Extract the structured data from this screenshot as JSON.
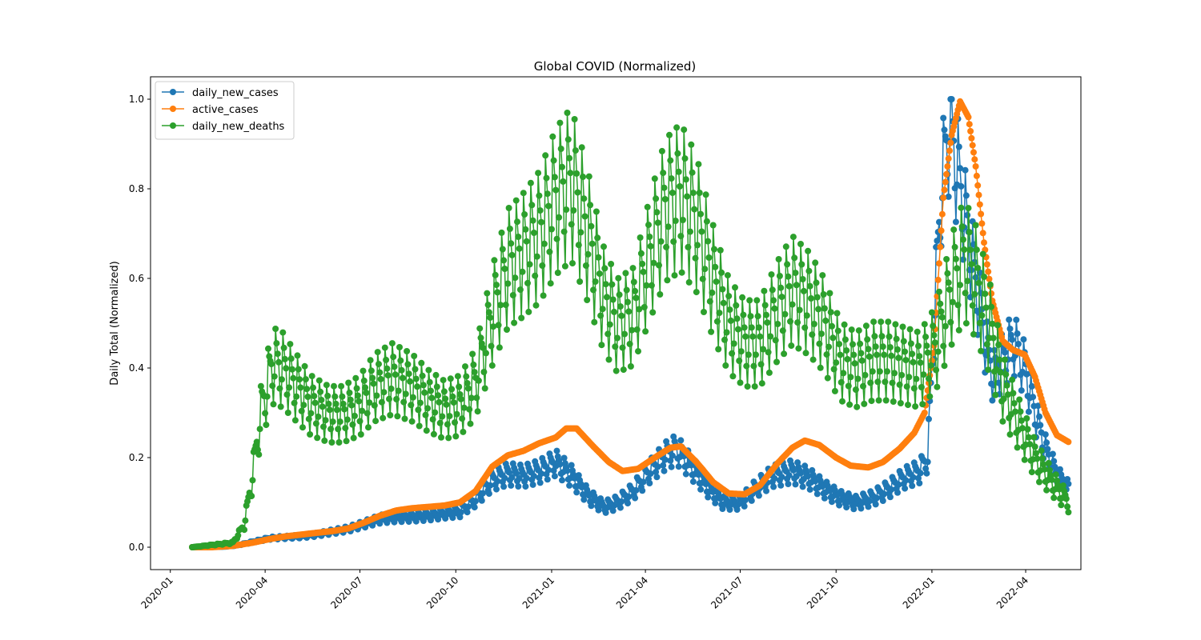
{
  "chart_data": {
    "type": "line",
    "title": "Global COVID (Normalized)",
    "xlabel": "",
    "ylabel": "Daily Total (Normalized)",
    "x_range": [
      "2019-12-13",
      "2022-05-24"
    ],
    "ylim": [
      -0.05,
      1.05
    ],
    "x_ticks": [
      "2020-01",
      "2020-04",
      "2020-07",
      "2020-10",
      "2021-01",
      "2021-04",
      "2021-07",
      "2021-10",
      "2022-01",
      "2022-04"
    ],
    "y_ticks": [
      "0.0",
      "0.2",
      "0.4",
      "0.6",
      "0.8",
      "1.0"
    ],
    "grid": false,
    "legend_position": "top-left",
    "series": [
      {
        "name": "daily_new_cases",
        "color": "#1f77b4",
        "points": [
          [
            "2020-01-22",
            0.0
          ],
          [
            "2020-02-05",
            0.002
          ],
          [
            "2020-02-20",
            0.001
          ],
          [
            "2020-03-05",
            0.004
          ],
          [
            "2020-03-20",
            0.012
          ],
          [
            "2020-04-05",
            0.02
          ],
          [
            "2020-04-20",
            0.022
          ],
          [
            "2020-05-05",
            0.024
          ],
          [
            "2020-05-20",
            0.028
          ],
          [
            "2020-06-05",
            0.035
          ],
          [
            "2020-06-20",
            0.041
          ],
          [
            "2020-07-05",
            0.052
          ],
          [
            "2020-07-20",
            0.063
          ],
          [
            "2020-08-05",
            0.067
          ],
          [
            "2020-08-20",
            0.068
          ],
          [
            "2020-09-05",
            0.071
          ],
          [
            "2020-09-20",
            0.076
          ],
          [
            "2020-10-05",
            0.08
          ],
          [
            "2020-10-20",
            0.108
          ],
          [
            "2020-11-05",
            0.15
          ],
          [
            "2020-11-20",
            0.165
          ],
          [
            "2020-12-05",
            0.16
          ],
          [
            "2020-12-20",
            0.17
          ],
          [
            "2021-01-05",
            0.19
          ],
          [
            "2021-01-20",
            0.16
          ],
          [
            "2021-02-05",
            0.115
          ],
          [
            "2021-02-20",
            0.09
          ],
          [
            "2021-03-05",
            0.1
          ],
          [
            "2021-03-20",
            0.125
          ],
          [
            "2021-04-05",
            0.17
          ],
          [
            "2021-04-20",
            0.205
          ],
          [
            "2021-05-01",
            0.22
          ],
          [
            "2021-05-15",
            0.18
          ],
          [
            "2021-06-01",
            0.13
          ],
          [
            "2021-06-15",
            0.1
          ],
          [
            "2021-07-01",
            0.1
          ],
          [
            "2021-07-15",
            0.13
          ],
          [
            "2021-08-01",
            0.16
          ],
          [
            "2021-08-20",
            0.17
          ],
          [
            "2021-09-05",
            0.155
          ],
          [
            "2021-09-20",
            0.13
          ],
          [
            "2021-10-05",
            0.11
          ],
          [
            "2021-10-20",
            0.1
          ],
          [
            "2021-11-05",
            0.11
          ],
          [
            "2021-11-20",
            0.13
          ],
          [
            "2021-12-05",
            0.155
          ],
          [
            "2021-12-20",
            0.17
          ],
          [
            "2021-12-28",
            0.2
          ],
          [
            "2022-01-03",
            0.5
          ],
          [
            "2022-01-10",
            0.8
          ],
          [
            "2022-01-18",
            0.95
          ],
          [
            "2022-01-25",
            0.85
          ],
          [
            "2022-02-01",
            0.75
          ],
          [
            "2022-02-08",
            0.65
          ],
          [
            "2022-02-15",
            0.55
          ],
          [
            "2022-02-22",
            0.45
          ],
          [
            "2022-03-01",
            0.38
          ],
          [
            "2022-03-10",
            0.42
          ],
          [
            "2022-03-20",
            0.46
          ],
          [
            "2022-03-31",
            0.4
          ],
          [
            "2022-04-10",
            0.3
          ],
          [
            "2022-04-20",
            0.22
          ],
          [
            "2022-05-01",
            0.16
          ],
          [
            "2022-05-12",
            0.13
          ]
        ]
      },
      {
        "name": "active_cases",
        "color": "#ff7f0e",
        "points": [
          [
            "2020-01-22",
            0.0
          ],
          [
            "2020-02-10",
            0.0
          ],
          [
            "2020-03-01",
            0.003
          ],
          [
            "2020-03-20",
            0.01
          ],
          [
            "2020-04-05",
            0.018
          ],
          [
            "2020-04-20",
            0.024
          ],
          [
            "2020-05-05",
            0.028
          ],
          [
            "2020-05-20",
            0.032
          ],
          [
            "2020-06-05",
            0.036
          ],
          [
            "2020-06-20",
            0.042
          ],
          [
            "2020-07-05",
            0.055
          ],
          [
            "2020-07-20",
            0.07
          ],
          [
            "2020-08-05",
            0.082
          ],
          [
            "2020-08-20",
            0.087
          ],
          [
            "2020-09-05",
            0.09
          ],
          [
            "2020-09-20",
            0.093
          ],
          [
            "2020-10-05",
            0.1
          ],
          [
            "2020-10-20",
            0.125
          ],
          [
            "2020-11-05",
            0.18
          ],
          [
            "2020-11-20",
            0.205
          ],
          [
            "2020-12-05",
            0.215
          ],
          [
            "2020-12-20",
            0.232
          ],
          [
            "2021-01-05",
            0.245
          ],
          [
            "2021-01-15",
            0.265
          ],
          [
            "2021-01-25",
            0.265
          ],
          [
            "2021-02-10",
            0.225
          ],
          [
            "2021-02-25",
            0.19
          ],
          [
            "2021-03-10",
            0.17
          ],
          [
            "2021-03-25",
            0.175
          ],
          [
            "2021-04-10",
            0.2
          ],
          [
            "2021-04-25",
            0.222
          ],
          [
            "2021-05-05",
            0.225
          ],
          [
            "2021-05-20",
            0.19
          ],
          [
            "2021-06-05",
            0.145
          ],
          [
            "2021-06-20",
            0.12
          ],
          [
            "2021-07-05",
            0.118
          ],
          [
            "2021-07-20",
            0.138
          ],
          [
            "2021-08-05",
            0.185
          ],
          [
            "2021-08-20",
            0.222
          ],
          [
            "2021-09-01",
            0.238
          ],
          [
            "2021-09-15",
            0.228
          ],
          [
            "2021-10-01",
            0.2
          ],
          [
            "2021-10-15",
            0.182
          ],
          [
            "2021-11-01",
            0.178
          ],
          [
            "2021-11-15",
            0.19
          ],
          [
            "2021-12-01",
            0.22
          ],
          [
            "2021-12-15",
            0.255
          ],
          [
            "2021-12-25",
            0.3
          ],
          [
            "2022-01-03",
            0.45
          ],
          [
            "2022-01-12",
            0.78
          ],
          [
            "2022-01-20",
            0.92
          ],
          [
            "2022-01-28",
            0.995
          ],
          [
            "2022-02-05",
            0.96
          ],
          [
            "2022-02-12",
            0.85
          ],
          [
            "2022-02-20",
            0.68
          ],
          [
            "2022-02-28",
            0.55
          ],
          [
            "2022-03-10",
            0.46
          ],
          [
            "2022-03-20",
            0.44
          ],
          [
            "2022-03-31",
            0.43
          ],
          [
            "2022-04-10",
            0.38
          ],
          [
            "2022-04-20",
            0.3
          ],
          [
            "2022-05-01",
            0.25
          ],
          [
            "2022-05-12",
            0.235
          ]
        ]
      },
      {
        "name": "daily_new_deaths",
        "color": "#2ca02c",
        "points": [
          [
            "2020-01-22",
            0.0
          ],
          [
            "2020-02-10",
            0.005
          ],
          [
            "2020-03-01",
            0.01
          ],
          [
            "2020-03-12",
            0.05
          ],
          [
            "2020-03-20",
            0.16
          ],
          [
            "2020-03-28",
            0.3
          ],
          [
            "2020-04-08",
            0.41
          ],
          [
            "2020-04-18",
            0.4
          ],
          [
            "2020-05-01",
            0.36
          ],
          [
            "2020-05-15",
            0.32
          ],
          [
            "2020-06-01",
            0.3
          ],
          [
            "2020-06-15",
            0.3
          ],
          [
            "2020-07-01",
            0.32
          ],
          [
            "2020-07-15",
            0.36
          ],
          [
            "2020-08-01",
            0.38
          ],
          [
            "2020-08-20",
            0.36
          ],
          [
            "2020-09-05",
            0.33
          ],
          [
            "2020-09-20",
            0.31
          ],
          [
            "2020-10-05",
            0.32
          ],
          [
            "2020-10-20",
            0.37
          ],
          [
            "2020-11-05",
            0.52
          ],
          [
            "2020-11-20",
            0.63
          ],
          [
            "2020-12-05",
            0.66
          ],
          [
            "2020-12-20",
            0.7
          ],
          [
            "2021-01-05",
            0.78
          ],
          [
            "2021-01-20",
            0.82
          ],
          [
            "2021-02-05",
            0.7
          ],
          [
            "2021-02-20",
            0.56
          ],
          [
            "2021-03-05",
            0.5
          ],
          [
            "2021-03-20",
            0.52
          ],
          [
            "2021-04-05",
            0.65
          ],
          [
            "2021-04-20",
            0.76
          ],
          [
            "2021-05-05",
            0.79
          ],
          [
            "2021-05-20",
            0.73
          ],
          [
            "2021-06-05",
            0.6
          ],
          [
            "2021-06-20",
            0.5
          ],
          [
            "2021-07-05",
            0.46
          ],
          [
            "2021-07-20",
            0.46
          ],
          [
            "2021-08-05",
            0.53
          ],
          [
            "2021-08-20",
            0.58
          ],
          [
            "2021-09-05",
            0.55
          ],
          [
            "2021-09-20",
            0.5
          ],
          [
            "2021-10-05",
            0.42
          ],
          [
            "2021-10-20",
            0.4
          ],
          [
            "2021-11-05",
            0.42
          ],
          [
            "2021-11-20",
            0.42
          ],
          [
            "2021-12-05",
            0.41
          ],
          [
            "2021-12-20",
            0.4
          ],
          [
            "2022-01-05",
            0.45
          ],
          [
            "2022-01-20",
            0.58
          ],
          [
            "2022-02-01",
            0.65
          ],
          [
            "2022-02-12",
            0.6
          ],
          [
            "2022-02-25",
            0.5
          ],
          [
            "2022-03-10",
            0.36
          ],
          [
            "2022-03-25",
            0.28
          ],
          [
            "2022-04-10",
            0.2
          ],
          [
            "2022-04-25",
            0.15
          ],
          [
            "2022-05-12",
            0.1
          ]
        ]
      }
    ]
  }
}
